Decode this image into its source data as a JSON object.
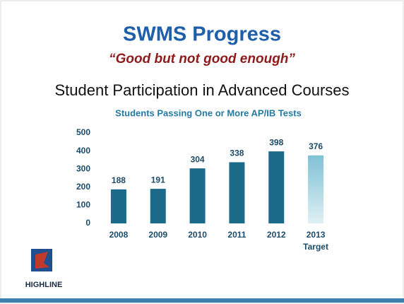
{
  "slide": {
    "title": "SWMS Progress",
    "subtitle": "“Good but not good enough”",
    "heading": "Student Participation  in Advanced Courses",
    "logo": "HIGHLINE"
  },
  "chart_data": {
    "type": "bar",
    "title": "Students Passing One or More AP/IB Tests",
    "categories": [
      "2008",
      "2009",
      "2010",
      "2011",
      "2012",
      "2013"
    ],
    "values": [
      188,
      191,
      304,
      338,
      398,
      376
    ],
    "colors": [
      "#1c6a89",
      "#1c6a89",
      "#1c6a89",
      "#1c6a89",
      "#1c6a89",
      "#a9d6e2"
    ],
    "annotation": "Target",
    "ylim": [
      0,
      500
    ],
    "yticks": [
      0,
      100,
      200,
      300,
      400,
      500
    ],
    "grid": false
  }
}
